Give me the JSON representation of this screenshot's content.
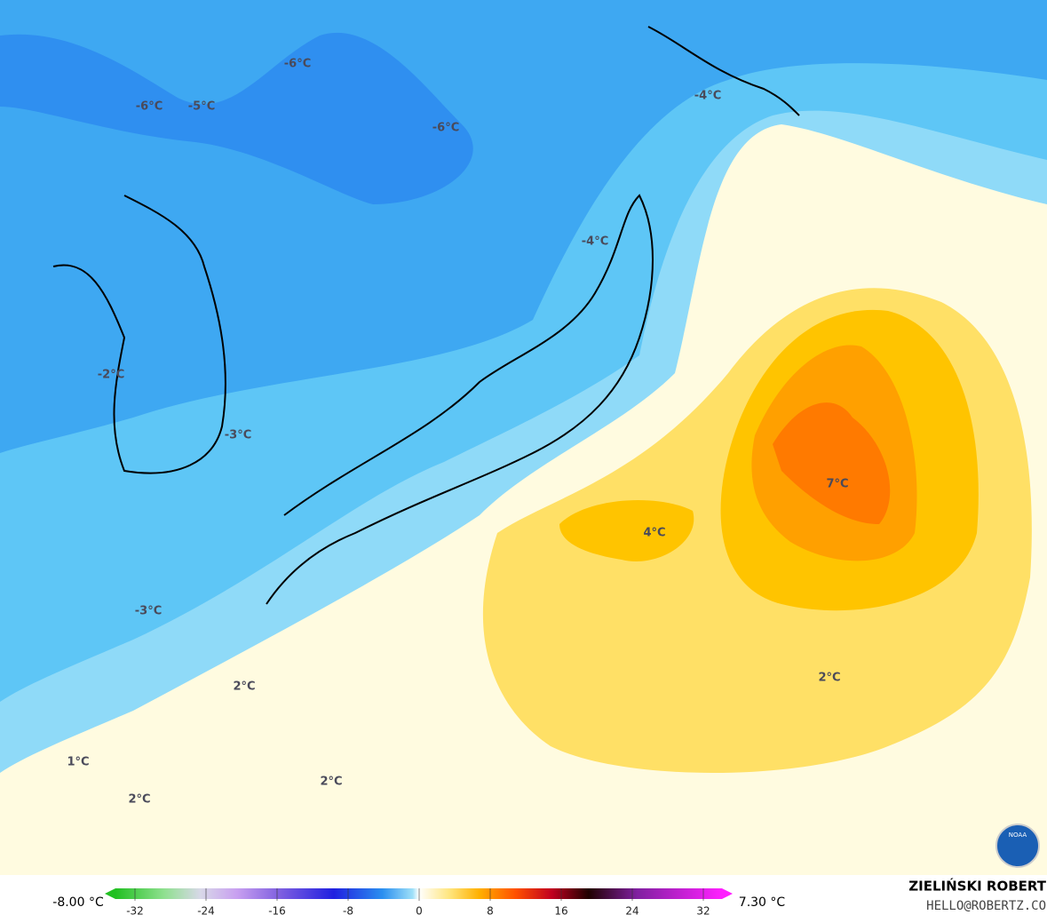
{
  "map": {
    "labels": [
      "-6°C",
      "-6°C",
      "-5°C",
      "-6°C",
      "-4°C",
      "-4°C",
      "-2°C",
      "-3°C",
      "-3°C",
      "7°C",
      "4°C",
      "2°C",
      "2°C",
      "1°C",
      "2°C",
      "2°C"
    ]
  },
  "colorbar": {
    "min_label": "-8.00 °C",
    "max_label": "7.30 °C",
    "ticks": [
      -32,
      -24,
      -16,
      -8,
      0,
      8,
      16,
      24,
      32
    ]
  },
  "credit": {
    "name": "ZIELIŃSKI ROBERT",
    "email": "HELLO@ROBERTZ.CO"
  },
  "logo": "NOAA"
}
